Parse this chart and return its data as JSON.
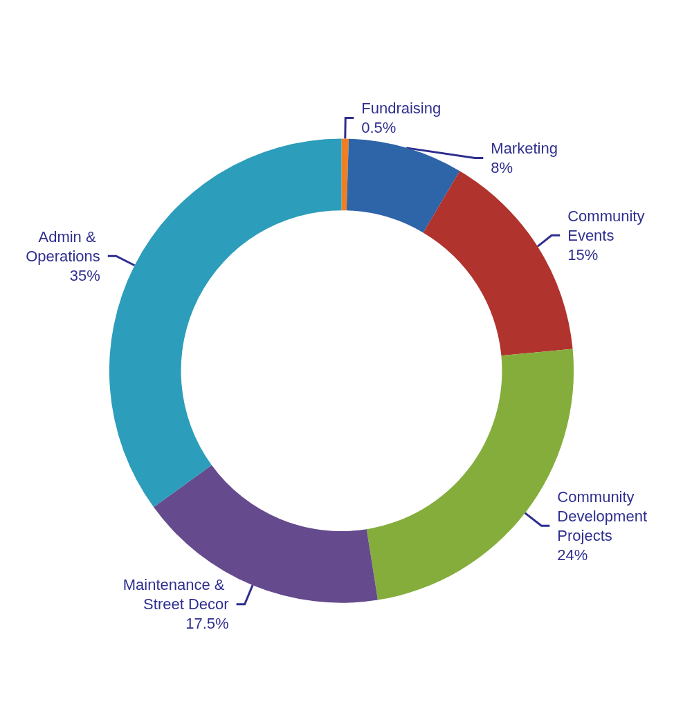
{
  "chart_data": {
    "type": "donut",
    "categories": [
      "Fundraising",
      "Marketing",
      "Community Events",
      "Community Development Projects",
      "Maintenance & Street Decor",
      "Admin & Operations"
    ],
    "values": [
      0.5,
      8,
      15,
      24,
      17.5,
      35
    ],
    "value_labels": [
      "0.5%",
      "8%",
      "15%",
      "24%",
      "17.5%",
      "35%"
    ],
    "colors": [
      "#f07f22",
      "#2e64a8",
      "#b0332e",
      "#85ad3c",
      "#654a8d",
      "#2c9dba"
    ],
    "legend": false
  }
}
